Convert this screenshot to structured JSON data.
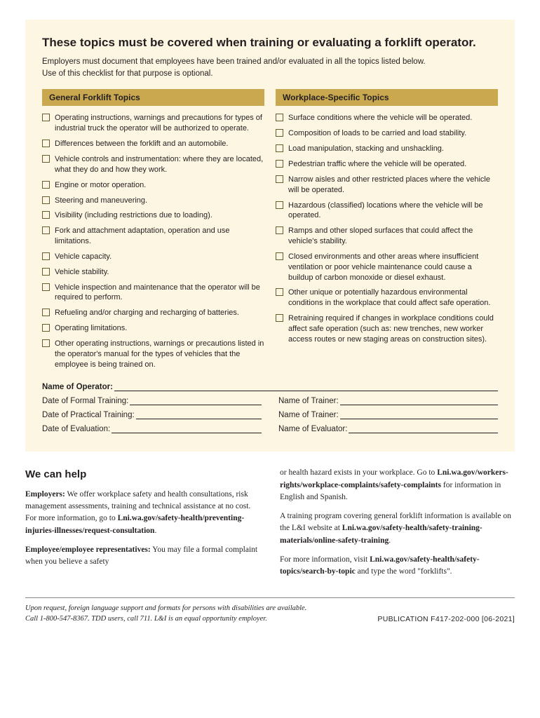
{
  "colors": {
    "cream": "#fdf6e3",
    "gold": "#c9a84f",
    "text": "#231f20",
    "checkbox_border": "#6b5a2e"
  },
  "main_title": "These topics must be covered when training or evaluating a forklift operator.",
  "sub_text_1": "Employers must document that employees have been trained and/or evaluated in all the topics listed below.",
  "sub_text_2": "Use of this checklist for that purpose is optional.",
  "left_header": "General Forklift Topics",
  "right_header": "Workplace-Specific Topics",
  "left_items": [
    "Operating instructions, warnings and precautions for types of industrial truck the operator will be authorized to operate.",
    "Differences between the forklift and an automobile.",
    "Vehicle controls and instrumentation: where they are located, what they do and how they work.",
    "Engine or motor operation.",
    "Steering and maneuvering.",
    "Visibility (including restrictions due to loading).",
    "Fork and attachment adaptation, operation and use limitations.",
    "Vehicle capacity.",
    "Vehicle stability.",
    "Vehicle inspection and maintenance that the operator will be required to perform.",
    "Refueling and/or charging and recharging of batteries.",
    "Operating limitations.",
    "Other operating instructions, warnings or precautions listed in the operator's manual for the types of vehicles that the employee is being trained on."
  ],
  "right_items": [
    "Surface conditions where the vehicle will be operated.",
    "Composition of loads to be carried and load stability.",
    "Load manipulation, stacking and unshackling.",
    "Pedestrian traffic where the vehicle will be operated.",
    "Narrow aisles and other restricted places where the vehicle will be operated.",
    "Hazardous (classified) locations where the vehicle will be operated.",
    "Ramps and other sloped surfaces that could affect the vehicle's stability.",
    "Closed environments and other areas where insufficient ventilation or poor vehicle maintenance could cause a buildup of carbon monoxide or diesel exhaust.",
    "Other unique or potentially hazardous environmental conditions in the workplace that could affect safe operation.",
    "Retraining required if changes in workplace conditions could affect safe operation (such as: new trenches, new worker access routes or new staging areas on construction sites)."
  ],
  "form_labels": {
    "name_op": "Name of Operator:",
    "date_formal": "Date of Formal Training:",
    "trainer1": "Name of Trainer:",
    "date_practical": "Date of Practical Training:",
    "trainer2": "Name of Trainer:",
    "date_eval": "Date of Evaluation:",
    "evaluator": "Name of Evaluator:"
  },
  "help": {
    "title": "We can help",
    "p1_lead": "Employers:",
    "p1": " We offer workplace safety and health consultations, risk management assessments, training and technical assistance at no cost. For more information, go to ",
    "p1_bold": "Lni.wa.gov/safety-health/preventing-injuries-illnesses/request-consultation",
    "p1_end": ".",
    "p2_lead": "Employee/employee representatives:",
    "p2": " You may file a formal complaint when you believe a safety",
    "p3a": "or health hazard exists in your workplace. Go to ",
    "p3_bold": "Lni.wa.gov/workers-rights/workplace-complaints/safety-complaints",
    "p3b": " for information in English and Spanish.",
    "p4a": "A training program covering general forklift information is available on the L&I website at ",
    "p4_bold": "Lni.wa.gov/safety-health/safety-training-materials/online-safety-training",
    "p4b": ".",
    "p5a": "For more information, visit ",
    "p5_bold": "Lni.wa.gov/safety-health/safety-topics/search-by-topic",
    "p5b": " and type the word \"forklifts\"."
  },
  "footer": {
    "line1": "Upon request, foreign language support and formats for persons with disabilities are available.",
    "line2": "Call 1-800-547-8367. TDD users, call 711. L&I is an equal opportunity employer.",
    "pub": "PUBLICATION F417-202-000  [06-2021]"
  }
}
